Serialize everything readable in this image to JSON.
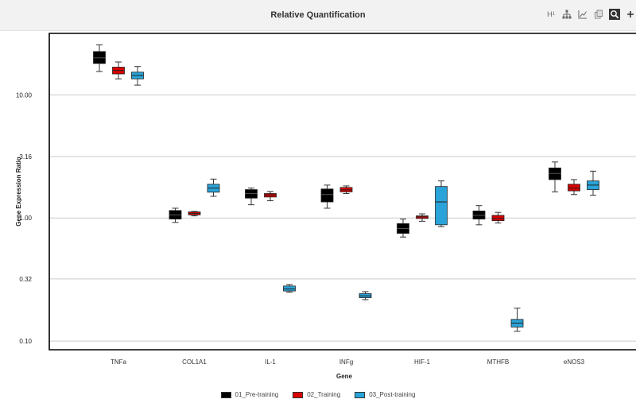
{
  "window": {
    "title": "Relative Quantification"
  },
  "toolbar": {
    "icons": [
      "heading-icon",
      "hierarchy-icon",
      "line-chart-icon",
      "copy-icon",
      "zoom-icon",
      "add-icon"
    ],
    "h_label": "H",
    "h_sub": "1"
  },
  "colors": {
    "series": [
      "#000000",
      "#d90000",
      "#2aa3d8"
    ],
    "grid": "#cccccc",
    "frame": "#000000"
  },
  "chart_data": {
    "type": "box",
    "title": "Relative Quantification",
    "xlabel": "Gene",
    "ylabel": "Gene Expression Ratio",
    "yscale": "log10",
    "ylim": [
      0.085,
      31.6
    ],
    "yticks": [
      0.1,
      0.32,
      1.0,
      3.16,
      10.0
    ],
    "ytick_labels": [
      "0.10",
      "0.32",
      "1.00",
      "3.16",
      "10.00"
    ],
    "grid": "horizontal",
    "legend_position": "bottom-center",
    "categories": [
      "TNFa",
      "COL1A1",
      "IL-1",
      "INFg",
      "HIF-1",
      "MTHFB",
      "eNOS3"
    ],
    "series": [
      {
        "name": "01_Pre-training",
        "boxes": [
          {
            "low": 15.5,
            "q1": 18.0,
            "median": 20.0,
            "q3": 22.5,
            "high": 25.5
          },
          {
            "low": 0.92,
            "q1": 0.98,
            "median": 1.06,
            "q3": 1.15,
            "high": 1.2
          },
          {
            "low": 1.28,
            "q1": 1.45,
            "median": 1.58,
            "q3": 1.7,
            "high": 1.75
          },
          {
            "low": 1.2,
            "q1": 1.35,
            "median": 1.55,
            "q3": 1.72,
            "high": 1.85
          },
          {
            "low": 0.7,
            "q1": 0.75,
            "median": 0.82,
            "q3": 0.9,
            "high": 0.98
          },
          {
            "low": 0.88,
            "q1": 0.98,
            "median": 1.05,
            "q3": 1.14,
            "high": 1.26
          },
          {
            "low": 1.63,
            "q1": 2.05,
            "median": 2.3,
            "q3": 2.55,
            "high": 2.85
          }
        ]
      },
      {
        "name": "02_Training",
        "boxes": [
          {
            "low": 13.5,
            "q1": 14.8,
            "median": 15.8,
            "q3": 16.8,
            "high": 18.5
          },
          {
            "low": 1.04,
            "q1": 1.06,
            "median": 1.09,
            "q3": 1.12,
            "high": 1.13
          },
          {
            "low": 1.38,
            "q1": 1.48,
            "median": 1.54,
            "q3": 1.58,
            "high": 1.64
          },
          {
            "low": 1.58,
            "q1": 1.63,
            "median": 1.69,
            "q3": 1.77,
            "high": 1.82
          },
          {
            "low": 0.94,
            "q1": 0.99,
            "median": 1.02,
            "q3": 1.04,
            "high": 1.08
          },
          {
            "low": 0.91,
            "q1": 0.95,
            "median": 0.99,
            "q3": 1.05,
            "high": 1.11
          },
          {
            "low": 1.55,
            "q1": 1.66,
            "median": 1.75,
            "q3": 1.88,
            "high": 2.05
          }
        ]
      },
      {
        "name": "03_Post-training",
        "boxes": [
          {
            "low": 12.0,
            "q1": 13.5,
            "median": 14.4,
            "q3": 15.3,
            "high": 17.0
          },
          {
            "low": 1.5,
            "q1": 1.62,
            "median": 1.75,
            "q3": 1.88,
            "high": 2.07
          },
          {
            "low": 0.25,
            "q1": 0.255,
            "median": 0.265,
            "q3": 0.28,
            "high": 0.288
          },
          {
            "low": 0.217,
            "q1": 0.225,
            "median": 0.233,
            "q3": 0.243,
            "high": 0.252
          },
          {
            "low": 0.85,
            "q1": 0.88,
            "median": 1.35,
            "q3": 1.8,
            "high": 2.0
          },
          {
            "low": 0.12,
            "q1": 0.13,
            "median": 0.14,
            "q3": 0.15,
            "high": 0.185
          },
          {
            "low": 1.53,
            "q1": 1.7,
            "median": 1.85,
            "q3": 2.0,
            "high": 2.4
          }
        ]
      }
    ]
  }
}
